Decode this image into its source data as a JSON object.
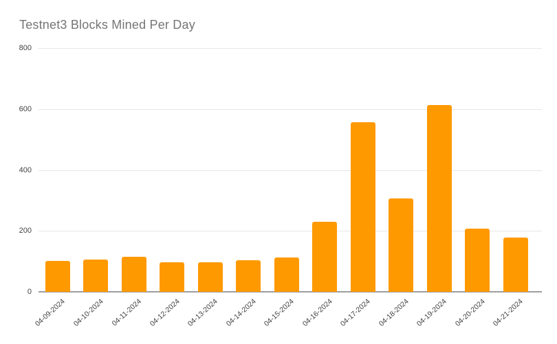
{
  "chart": {
    "title": "Testnet3 Blocks Mined Per Day"
  },
  "chart_data": {
    "type": "bar",
    "title": "Testnet3 Blocks Mined Per Day",
    "categories": [
      "04-09-2024",
      "04-10-2024",
      "04-11-2024",
      "04-12-2024",
      "04-13-2024",
      "04-14-2024",
      "04-15-2024",
      "04-16-2024",
      "04-17-2024",
      "04-18-2024",
      "04-19-2024",
      "04-20-2024",
      "04-21-2024"
    ],
    "values": [
      102,
      106,
      116,
      98,
      97,
      104,
      113,
      230,
      557,
      307,
      612,
      207,
      177
    ],
    "xlabel": "",
    "ylabel": "",
    "ylim": [
      0,
      800
    ],
    "y_ticks": [
      0,
      200,
      400,
      600,
      800
    ],
    "grid": true,
    "legend": "none",
    "bar_color": "#ff9900",
    "gridline_color": "#e6e6e6",
    "axis_line_color": "#9e9e9e",
    "tick_label_color": "#424242",
    "title_color": "#757575"
  }
}
